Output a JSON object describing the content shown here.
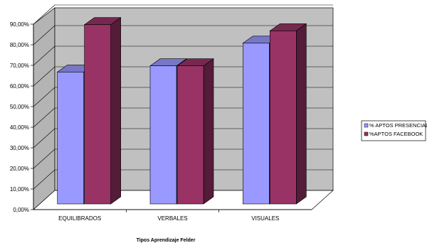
{
  "chart_data": {
    "type": "bar",
    "title": "",
    "xlabel": "Tipos Aprendizaje Felder",
    "ylabel": "",
    "categories": [
      "EQUILIBRADOS",
      "VERBALES",
      "VISUALES"
    ],
    "series": [
      {
        "name": "% APTOS PRESENCIAL",
        "values": [
          0.64,
          0.67,
          0.78
        ],
        "color": "#9999ff"
      },
      {
        "name": "%APTOS FACEBOOK",
        "values": [
          0.87,
          0.67,
          0.84
        ],
        "color": "#993366"
      }
    ],
    "ylim": [
      0,
      0.9
    ],
    "yticks": [
      "0,00%",
      "10,00%",
      "20,00%",
      "30,00%",
      "40,00%",
      "50,00%",
      "60,00%",
      "70,00%",
      "80,00%",
      "90,00%"
    ],
    "grid": true,
    "legend_position": "right",
    "style": "3d-clustered-column",
    "wall_color": "#c0c0c0"
  }
}
